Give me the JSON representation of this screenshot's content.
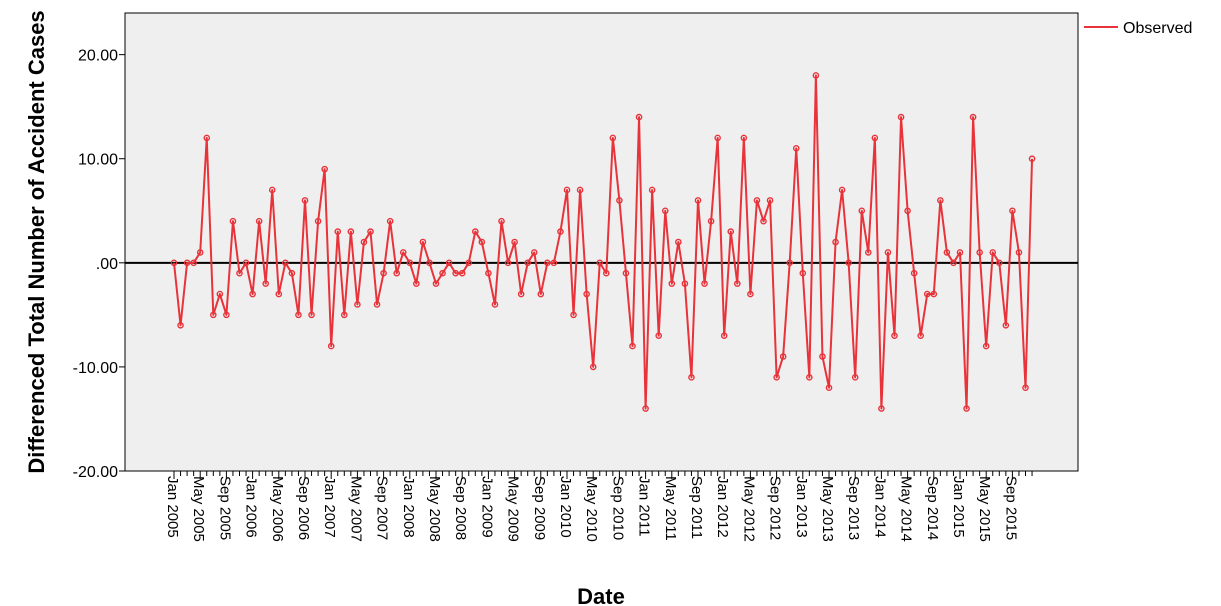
{
  "chart_data": {
    "type": "line",
    "title": "",
    "xlabel": "Date",
    "ylabel": "Differenced Total Number of Accident Cases",
    "ylim": [
      -20,
      24
    ],
    "yticks": [
      -20,
      -10,
      0,
      10,
      20
    ],
    "ytick_labels": [
      "-20.00",
      "-10.00",
      ".00",
      "10.00",
      "20.00"
    ],
    "x_start": "Jan 2005",
    "x_frequency": "monthly",
    "xtick_labels": [
      "Jan 2005",
      "May 2005",
      "Sep 2005",
      "Jan 2006",
      "May 2006",
      "Sep 2006",
      "Jan 2007",
      "May 2007",
      "Sep 2007",
      "Jan 2008",
      "May 2008",
      "Sep 2008",
      "Jan 2009",
      "May 2009",
      "Sep 2009",
      "Jan 2010",
      "May 2010",
      "Sep 2010",
      "Jan 2011",
      "May 2011",
      "Sep 2011",
      "Jan 2012",
      "May 2012",
      "Sep 2012",
      "Jan 2013",
      "May 2013",
      "Sep 2013",
      "Jan 2014",
      "May 2014",
      "Sep 2014",
      "Jan 2015",
      "May 2015",
      "Sep 2015"
    ],
    "reference_line": 0,
    "grid": false,
    "legend_position": "top-right",
    "plot_background": "#efefef",
    "series": [
      {
        "name": "Observed",
        "color": "#e8333a",
        "values": [
          0,
          -6,
          0,
          0,
          1,
          12,
          -5,
          -3,
          -5,
          4,
          -1,
          0,
          -3,
          4,
          -2,
          7,
          -3,
          0,
          -1,
          -5,
          6,
          -5,
          4,
          9,
          -8,
          3,
          -5,
          3,
          -4,
          2,
          3,
          -4,
          -1,
          4,
          -1,
          1,
          0,
          -2,
          2,
          0,
          -2,
          -1,
          0,
          -1,
          -1,
          0,
          3,
          2,
          -1,
          -4,
          4,
          0,
          2,
          -3,
          0,
          1,
          -3,
          0,
          0,
          3,
          7,
          -5,
          7,
          -3,
          -10,
          0,
          -1,
          12,
          6,
          -1,
          -8,
          14,
          -14,
          7,
          -7,
          5,
          -2,
          2,
          -2,
          -11,
          6,
          -2,
          4,
          12,
          -7,
          3,
          -2,
          12,
          -3,
          6,
          4,
          6,
          -11,
          -9,
          0,
          11,
          -1,
          -11,
          18,
          -9,
          -12,
          2,
          7,
          0,
          -11,
          5,
          1,
          12,
          -14,
          1,
          -7,
          14,
          5,
          -1,
          -7,
          -3,
          -3,
          6,
          1,
          0,
          1,
          -14,
          14,
          1,
          -8,
          1,
          0,
          -6,
          5,
          1,
          -12,
          10
        ]
      }
    ]
  }
}
